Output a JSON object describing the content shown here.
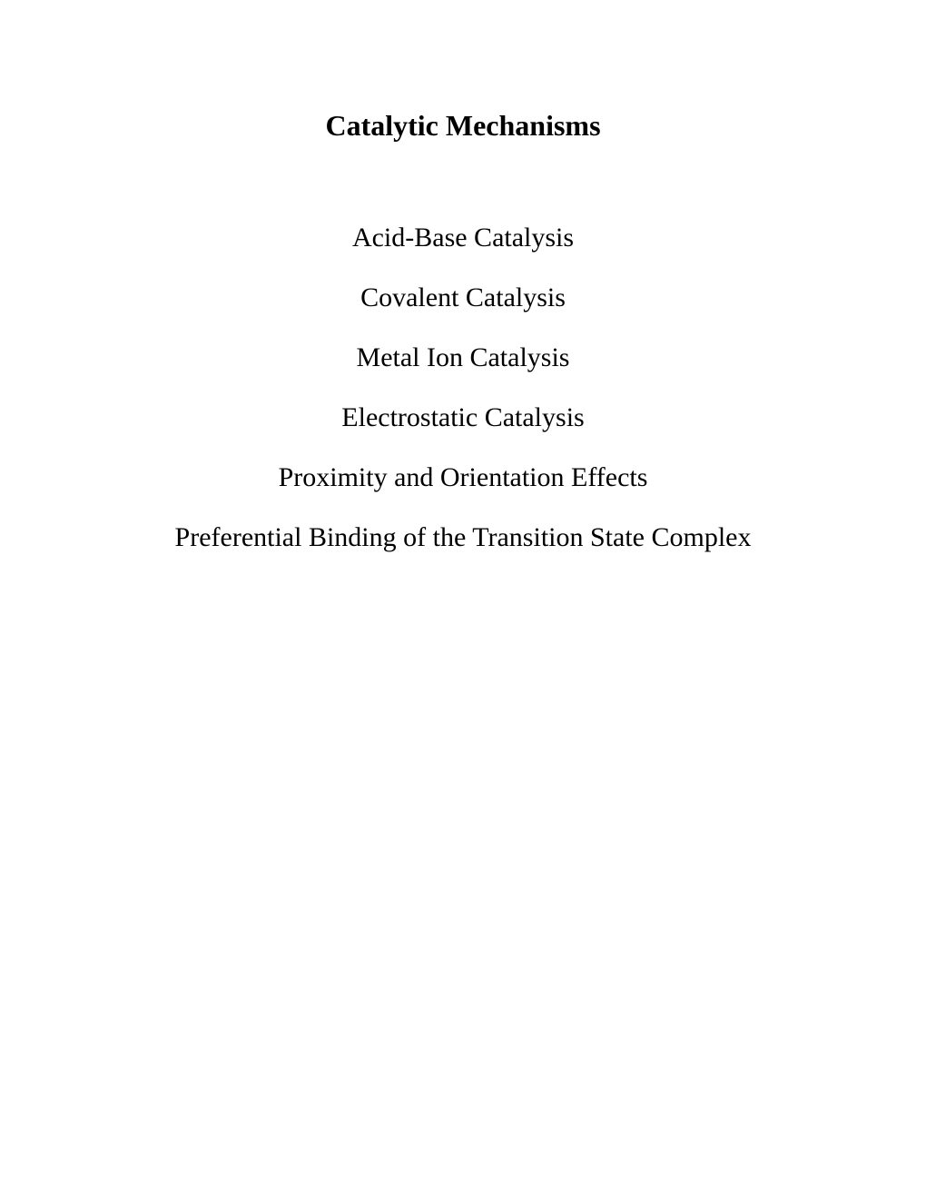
{
  "document": {
    "title": "Catalytic Mechanisms",
    "title_fontsize": 32,
    "title_fontweight": "bold",
    "items": [
      "Acid-Base Catalysis",
      "Covalent Catalysis",
      "Metal Ion Catalysis",
      "Electrostatic Catalysis",
      "Proximity and Orientation Effects",
      "Preferential Binding of the Transition State Complex"
    ],
    "item_fontsize": 30,
    "item_fontweight": "normal",
    "background_color": "#ffffff",
    "text_color": "#000000",
    "font_family": "Times New Roman"
  }
}
